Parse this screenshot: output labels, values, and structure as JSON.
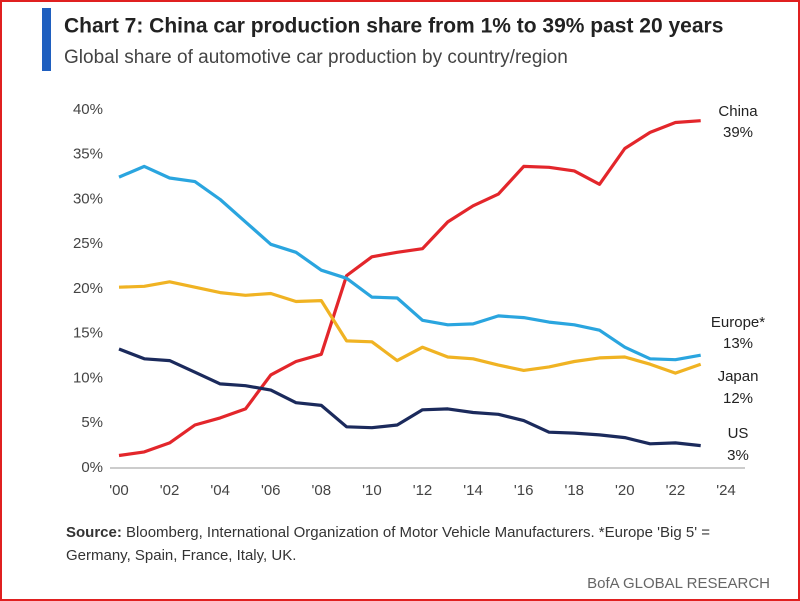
{
  "chart_data": {
    "type": "line",
    "title": "Chart 7: China car production share from 1% to 39% past 20 years",
    "subtitle": "Global share of automotive car production by country/region",
    "source_label": "Source:",
    "source": "Bloomberg, International Organization of Motor Vehicle Manufacturers. *Europe 'Big 5' = Germany, Spain, France, Italy, UK.",
    "footer": "BofA GLOBAL RESEARCH",
    "x": [
      2000,
      2001,
      2002,
      2003,
      2004,
      2005,
      2006,
      2007,
      2008,
      2009,
      2010,
      2011,
      2012,
      2013,
      2014,
      2015,
      2016,
      2017,
      2018,
      2019,
      2020,
      2021,
      2022,
      2023
    ],
    "xlim": [
      2000,
      2024
    ],
    "xticks": [
      {
        "value": 2000,
        "label": "'00"
      },
      {
        "value": 2002,
        "label": "'02"
      },
      {
        "value": 2004,
        "label": "'04"
      },
      {
        "value": 2006,
        "label": "'06"
      },
      {
        "value": 2008,
        "label": "'08"
      },
      {
        "value": 2010,
        "label": "'10"
      },
      {
        "value": 2012,
        "label": "'12"
      },
      {
        "value": 2014,
        "label": "'14"
      },
      {
        "value": 2016,
        "label": "'16"
      },
      {
        "value": 2018,
        "label": "'18"
      },
      {
        "value": 2020,
        "label": "'20"
      },
      {
        "value": 2022,
        "label": "'22"
      },
      {
        "value": 2024,
        "label": "'24"
      }
    ],
    "ylim": [
      0,
      40
    ],
    "yticks": [
      {
        "value": 0,
        "label": "0%"
      },
      {
        "value": 5,
        "label": "5%"
      },
      {
        "value": 10,
        "label": "10%"
      },
      {
        "value": 15,
        "label": "15%"
      },
      {
        "value": 20,
        "label": "20%"
      },
      {
        "value": 25,
        "label": "25%"
      },
      {
        "value": 30,
        "label": "30%"
      },
      {
        "value": 35,
        "label": "35%"
      },
      {
        "value": 40,
        "label": "40%"
      }
    ],
    "grid": false,
    "series": [
      {
        "name": "China",
        "color": "#e3262b",
        "values": [
          1.4,
          1.8,
          2.8,
          4.8,
          5.6,
          6.6,
          10.4,
          11.9,
          12.7,
          21.5,
          23.6,
          24.1,
          24.5,
          27.5,
          29.3,
          30.6,
          33.7,
          33.6,
          33.2,
          31.7,
          35.7,
          37.5,
          38.6,
          38.8
        ],
        "value_labels": [
          null,
          null,
          null,
          null,
          null,
          null,
          null,
          null,
          null,
          null,
          null,
          null,
          null,
          null,
          null,
          null,
          null,
          null,
          null,
          null,
          null,
          null,
          null,
          "39%"
        ]
      },
      {
        "name": "Europe*",
        "color": "#2aa5df",
        "values": [
          32.5,
          33.7,
          32.4,
          32.0,
          30.0,
          27.5,
          25.0,
          24.1,
          22.1,
          21.2,
          19.1,
          19.0,
          16.5,
          16.0,
          16.1,
          17.0,
          16.8,
          16.3,
          16.0,
          15.4,
          13.5,
          12.2,
          12.1,
          12.6
        ],
        "value_labels": [
          null,
          null,
          null,
          null,
          null,
          null,
          null,
          null,
          null,
          null,
          null,
          null,
          null,
          null,
          null,
          null,
          null,
          null,
          null,
          null,
          null,
          null,
          null,
          "13%"
        ]
      },
      {
        "name": "Japan",
        "color": "#f0b323",
        "values": [
          20.2,
          20.3,
          20.8,
          20.2,
          19.6,
          19.3,
          19.5,
          18.6,
          18.7,
          14.2,
          14.1,
          12.0,
          13.5,
          12.4,
          12.2,
          11.5,
          10.9,
          11.3,
          11.9,
          12.3,
          12.4,
          11.6,
          10.6,
          11.6
        ],
        "value_labels": [
          null,
          null,
          null,
          null,
          null,
          null,
          null,
          null,
          null,
          null,
          null,
          null,
          null,
          null,
          null,
          null,
          null,
          null,
          null,
          null,
          null,
          null,
          null,
          "12%"
        ]
      },
      {
        "name": "US",
        "color": "#1b2a5c",
        "values": [
          13.3,
          12.2,
          12.0,
          10.7,
          9.4,
          9.2,
          8.7,
          7.3,
          7.0,
          4.6,
          4.5,
          4.8,
          6.5,
          6.6,
          6.2,
          6.0,
          5.3,
          4.0,
          3.9,
          3.7,
          3.4,
          2.7,
          2.8,
          2.5
        ],
        "value_labels": [
          null,
          null,
          null,
          null,
          null,
          null,
          null,
          null,
          null,
          null,
          null,
          null,
          null,
          null,
          null,
          null,
          null,
          null,
          null,
          null,
          null,
          null,
          null,
          "3%"
        ]
      }
    ]
  }
}
